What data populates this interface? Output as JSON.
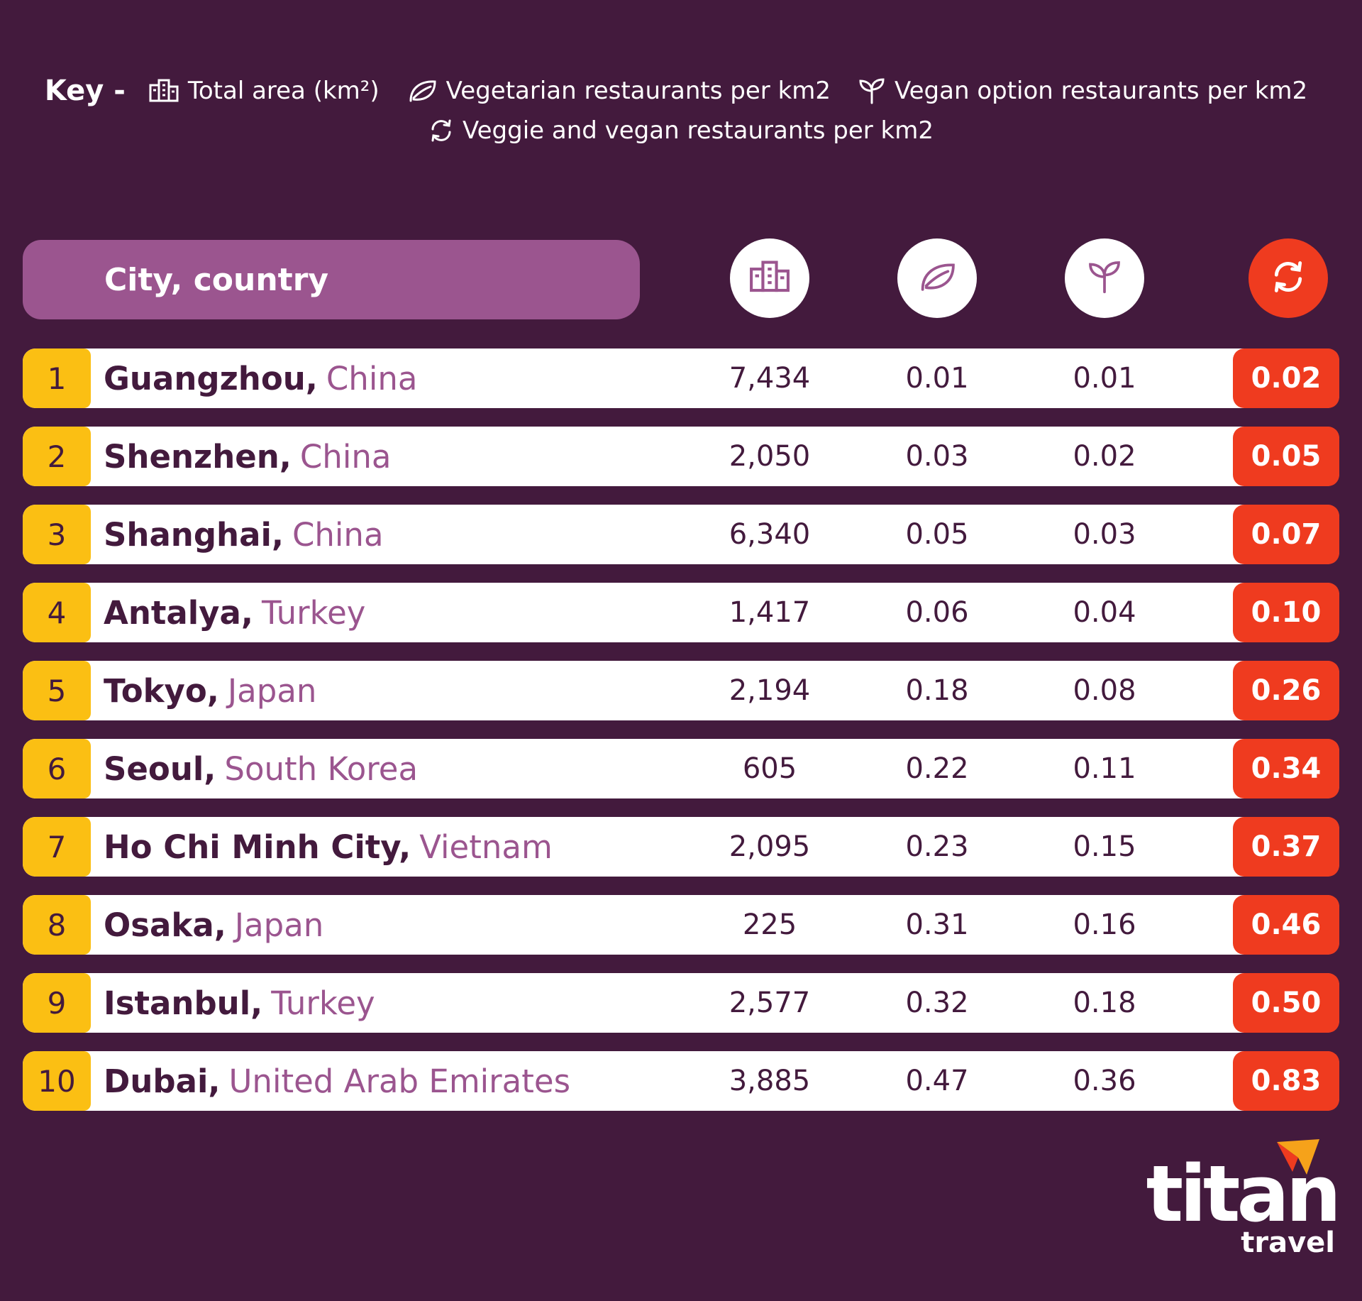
{
  "key": {
    "title": "Key -",
    "items": [
      {
        "icon": "buildings-icon",
        "label": "Total area (km²)"
      },
      {
        "icon": "leaf-icon",
        "label": "Vegetarian restaurants per km2"
      },
      {
        "icon": "sprout-icon",
        "label": "Vegan option restaurants per km2"
      },
      {
        "icon": "refresh-icon",
        "label": "Veggie and vegan restaurants per km2"
      }
    ]
  },
  "table": {
    "header_label": "City, country",
    "header_icons": [
      "buildings-icon",
      "leaf-icon",
      "sprout-icon",
      "refresh-icon"
    ],
    "rows": [
      {
        "rank": "1",
        "city": "Guangzhou,",
        "country": "China",
        "area": "7,434",
        "veg": "0.01",
        "vegan": "0.01",
        "total": "0.02"
      },
      {
        "rank": "2",
        "city": "Shenzhen,",
        "country": "China",
        "area": "2,050",
        "veg": "0.03",
        "vegan": "0.02",
        "total": "0.05"
      },
      {
        "rank": "3",
        "city": "Shanghai,",
        "country": "China",
        "area": "6,340",
        "veg": "0.05",
        "vegan": "0.03",
        "total": "0.07"
      },
      {
        "rank": "4",
        "city": "Antalya,",
        "country": "Turkey",
        "area": "1,417",
        "veg": "0.06",
        "vegan": "0.04",
        "total": "0.10"
      },
      {
        "rank": "5",
        "city": "Tokyo,",
        "country": "Japan",
        "area": "2,194",
        "veg": "0.18",
        "vegan": "0.08",
        "total": "0.26"
      },
      {
        "rank": "6",
        "city": "Seoul,",
        "country": "South Korea",
        "area": "605",
        "veg": "0.22",
        "vegan": "0.11",
        "total": "0.34"
      },
      {
        "rank": "7",
        "city": "Ho Chi Minh City,",
        "country": "Vietnam",
        "area": "2,095",
        "veg": "0.23",
        "vegan": "0.15",
        "total": "0.37"
      },
      {
        "rank": "8",
        "city": "Osaka,",
        "country": "Japan",
        "area": "225",
        "veg": "0.31",
        "vegan": "0.16",
        "total": "0.46"
      },
      {
        "rank": "9",
        "city": "Istanbul,",
        "country": "Turkey",
        "area": "2,577",
        "veg": "0.32",
        "vegan": "0.18",
        "total": "0.50"
      },
      {
        "rank": "10",
        "city": "Dubai,",
        "country": "United Arab Emirates",
        "area": "3,885",
        "veg": "0.47",
        "vegan": "0.36",
        "total": "0.83"
      }
    ]
  },
  "logo": {
    "word": "titan",
    "sub": "travel"
  },
  "colors": {
    "background": "#431a3d",
    "header_pill": "#9b558f",
    "rank_badge": "#fbbf13",
    "accent": "#ef3b1f",
    "country_text": "#9b558f"
  }
}
